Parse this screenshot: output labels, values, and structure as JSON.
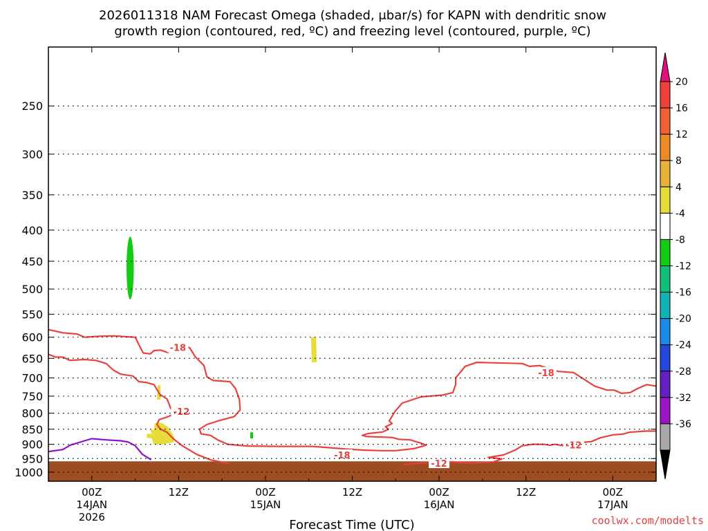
{
  "chart_data": {
    "type": "heatmap",
    "title_line1": "2026011318 NAM Forecast Omega (shaded, μbar/s) for KAPN with dendritic snow",
    "title_line2": "growth region (contoured, red, ºC) and freezing level (contoured, purple, ºC)",
    "xlabel": "Forecast Time (UTC)",
    "credit": "coolwx.com/modelts",
    "x_range_hours": [
      -6,
      78
    ],
    "y_range_hpa": [
      200,
      1035
    ],
    "y_ticks": [
      250,
      300,
      350,
      400,
      450,
      500,
      550,
      600,
      650,
      700,
      750,
      800,
      850,
      900,
      950,
      1000
    ],
    "x_ticks": [
      {
        "hour": 0,
        "label": "00Z",
        "sub1": "14JAN",
        "sub2": "2026"
      },
      {
        "hour": 12,
        "label": "12Z",
        "sub1": "",
        "sub2": ""
      },
      {
        "hour": 24,
        "label": "00Z",
        "sub1": "15JAN",
        "sub2": ""
      },
      {
        "hour": 36,
        "label": "12Z",
        "sub1": "",
        "sub2": ""
      },
      {
        "hour": 48,
        "label": "00Z",
        "sub1": "16JAN",
        "sub2": ""
      },
      {
        "hour": 60,
        "label": "12Z",
        "sub1": "",
        "sub2": ""
      },
      {
        "hour": 72,
        "label": "00Z",
        "sub1": "17JAN",
        "sub2": ""
      }
    ],
    "grid": true,
    "colorbar": {
      "labels": [
        20,
        16,
        12,
        8,
        4,
        -4,
        -8,
        -12,
        -16,
        -20,
        -24,
        -28,
        -32,
        -36
      ],
      "colors": [
        "#f0403c",
        "#f06030",
        "#ee8a26",
        "#e8b23a",
        "#e6dc3a",
        "#ffffff",
        "#12cc12",
        "#10c078",
        "#10b4b4",
        "#1a8aea",
        "#2448dc",
        "#6420c0",
        "#9c14c4",
        "#a8a8a8"
      ],
      "top_arrow_color": "#e0107a",
      "bottom_arrow_color": "#000000"
    },
    "shaded_regions": [
      {
        "kind": "ellipse",
        "name": "omega-green-450",
        "color": "#12cc12",
        "hour": 5.3,
        "p_top": 410,
        "p_bottom": 520,
        "half_width_hours": 0.5
      },
      {
        "kind": "polygon",
        "name": "omega-yellow-625",
        "color": "#e6dc3a",
        "points": [
          [
            30.3,
            600
          ],
          [
            31.0,
            600
          ],
          [
            31.1,
            660
          ],
          [
            30.4,
            660
          ]
        ]
      },
      {
        "kind": "polygon",
        "name": "omega-yellow-735",
        "color": "#e6dc3a",
        "points": [
          [
            9.1,
            720
          ],
          [
            9.5,
            720
          ],
          [
            9.5,
            760
          ],
          [
            9.0,
            760
          ]
        ]
      },
      {
        "kind": "polygon",
        "name": "omega-yellow-870",
        "color": "#e6dc3a",
        "points": [
          [
            8.1,
            852
          ],
          [
            8.6,
            852
          ],
          [
            8.7,
            830
          ],
          [
            9.7,
            830
          ],
          [
            10.5,
            842
          ],
          [
            11.0,
            860
          ],
          [
            11.4,
            875
          ],
          [
            11.3,
            893
          ],
          [
            10.3,
            898
          ],
          [
            9.3,
            902
          ],
          [
            8.5,
            898
          ],
          [
            8.3,
            880
          ],
          [
            7.6,
            878
          ],
          [
            7.6,
            865
          ],
          [
            8.3,
            865
          ]
        ]
      },
      {
        "kind": "polygon",
        "name": "omega-green-870",
        "color": "#12cc12",
        "points": [
          [
            21.9,
            860
          ],
          [
            22.3,
            860
          ],
          [
            22.3,
            880
          ],
          [
            21.9,
            880
          ]
        ]
      }
    ],
    "ground": {
      "color": "#9e4d22",
      "p_top_left": 960,
      "p_bottom": 1035
    },
    "red_contours": [
      {
        "name": "dgz-contour-upper",
        "color": "#e8403f",
        "points": [
          [
            -6,
            583
          ],
          [
            -4,
            590
          ],
          [
            -2,
            593
          ],
          [
            -1,
            600
          ],
          [
            1,
            598
          ],
          [
            3,
            597
          ],
          [
            5,
            599
          ],
          [
            6,
            600
          ],
          [
            6.5,
            617
          ],
          [
            7.1,
            637
          ],
          [
            8.1,
            639
          ],
          [
            8.6,
            631
          ],
          [
            9.5,
            630
          ],
          [
            10.5,
            636
          ],
          [
            11.5,
            624
          ],
          [
            13.5,
            624
          ],
          [
            14.3,
            646
          ],
          [
            15.5,
            668
          ],
          [
            15.9,
            697
          ],
          [
            16.8,
            707
          ],
          [
            19.1,
            710
          ],
          [
            19.9,
            730
          ],
          [
            20.4,
            760
          ],
          [
            20.5,
            790
          ],
          [
            19.7,
            810
          ],
          [
            17.7,
            822
          ],
          [
            15.9,
            835
          ],
          [
            14.9,
            850
          ],
          [
            15.1,
            865
          ],
          [
            16.4,
            870
          ],
          [
            17.4,
            885
          ],
          [
            18.8,
            900
          ],
          [
            21.5,
            906
          ],
          [
            26,
            907
          ],
          [
            30.5,
            907
          ],
          [
            35,
            916
          ],
          [
            37.5,
            920
          ],
          [
            40,
            922
          ],
          [
            42,
            922
          ],
          [
            44.5,
            915
          ],
          [
            46.2,
            903
          ],
          [
            45.5,
            896
          ],
          [
            44,
            885
          ],
          [
            42.4,
            883
          ],
          [
            41.5,
            877
          ],
          [
            38,
            874
          ],
          [
            37.4,
            870
          ],
          [
            38.2,
            864
          ],
          [
            40.2,
            859
          ],
          [
            41,
            850
          ],
          [
            40.6,
            842
          ],
          [
            41.5,
            832
          ],
          [
            41.1,
            824
          ],
          [
            41.9,
            795
          ],
          [
            42.9,
            770
          ],
          [
            45.5,
            752
          ],
          [
            48.5,
            747
          ],
          [
            49.9,
            740
          ],
          [
            50.3,
            717
          ],
          [
            50.3,
            700
          ],
          [
            51.6,
            670
          ],
          [
            53.2,
            660
          ],
          [
            55.2,
            661
          ],
          [
            57.7,
            662
          ],
          [
            59.5,
            663
          ],
          [
            60.5,
            670
          ],
          [
            61.9,
            668
          ],
          [
            63,
            675
          ],
          [
            64.5,
            683
          ],
          [
            66.6,
            686
          ],
          [
            67.8,
            701
          ],
          [
            69.5,
            722
          ],
          [
            71.2,
            733
          ],
          [
            72.2,
            733
          ],
          [
            73.2,
            742
          ],
          [
            74.4,
            740
          ],
          [
            75.5,
            728
          ],
          [
            76.7,
            718
          ],
          [
            78,
            722
          ]
        ]
      },
      {
        "name": "dgz-contour-lower",
        "color": "#e8403f",
        "points": [
          [
            -6,
            640
          ],
          [
            -5,
            647
          ],
          [
            -4,
            647
          ],
          [
            -3,
            655
          ],
          [
            -1,
            653
          ],
          [
            0.5,
            655
          ],
          [
            2,
            663
          ],
          [
            3,
            680
          ],
          [
            4,
            690
          ],
          [
            5.7,
            695
          ],
          [
            6.5,
            710
          ],
          [
            7.5,
            712
          ],
          [
            8.6,
            718
          ],
          [
            9.4,
            745
          ],
          [
            10.4,
            758
          ],
          [
            10.9,
            785
          ],
          [
            11.6,
            800
          ],
          [
            10.6,
            810
          ],
          [
            9.3,
            820
          ],
          [
            9,
            835
          ],
          [
            9.5,
            850
          ],
          [
            10.4,
            860
          ],
          [
            11.2,
            880
          ],
          [
            12.5,
            905
          ],
          [
            14.5,
            935
          ],
          [
            16.5,
            955
          ],
          [
            19,
            968
          ]
        ]
      },
      {
        "name": "dgz-contour-bottom",
        "color": "#e8403f",
        "points": [
          [
            43,
            972
          ],
          [
            46,
            965
          ],
          [
            49.5,
            962
          ],
          [
            52.5,
            966
          ],
          [
            55.5,
            962
          ],
          [
            56.7,
            951
          ],
          [
            54.8,
            946
          ],
          [
            56.9,
            937
          ],
          [
            58.5,
            920
          ],
          [
            59.5,
            905
          ],
          [
            60.9,
            900
          ],
          [
            62.5,
            900
          ],
          [
            63.3,
            903
          ],
          [
            64,
            900
          ],
          [
            65.2,
            905
          ],
          [
            66,
            907
          ],
          [
            67.2,
            894
          ],
          [
            69,
            891
          ],
          [
            70.3,
            878
          ],
          [
            72.1,
            868
          ],
          [
            73.4,
            866
          ],
          [
            74.3,
            860
          ],
          [
            76.5,
            856
          ],
          [
            78,
            856
          ]
        ]
      }
    ],
    "contour_labels": [
      {
        "name": "contour-label-m18-a",
        "text": "-18",
        "hour": 11.9,
        "p": 624
      },
      {
        "name": "contour-label-m12-a",
        "text": "-12",
        "hour": 12.4,
        "p": 795
      },
      {
        "name": "contour-label-m18-b",
        "text": "-18",
        "hour": 34.6,
        "p": 937
      },
      {
        "name": "contour-label-m12-b",
        "text": "-12",
        "hour": 48,
        "p": 967
      },
      {
        "name": "contour-label-m18-c",
        "text": "-18",
        "hour": 62.8,
        "p": 686
      },
      {
        "name": "contour-label-m12-c",
        "text": "-12",
        "hour": 66.6,
        "p": 902
      }
    ],
    "purple_contour": {
      "name": "freezing-level-contour",
      "color": "#9010c8",
      "points": [
        [
          -6,
          925
        ],
        [
          -4,
          918
        ],
        [
          -3,
          903
        ],
        [
          -1,
          888
        ],
        [
          0,
          881
        ],
        [
          2,
          885
        ],
        [
          4,
          888
        ],
        [
          5,
          892
        ],
        [
          6,
          905
        ],
        [
          7,
          935
        ],
        [
          8.2,
          954
        ]
      ]
    }
  }
}
